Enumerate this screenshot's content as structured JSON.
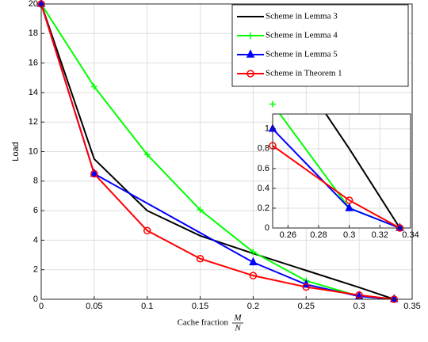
{
  "chart_data": [
    {
      "type": "line",
      "xlabel": "Cache fraction",
      "xlabel_fraction": {
        "numerator": "M",
        "denominator": "N"
      },
      "ylabel": "Load",
      "xlim": [
        0,
        0.35
      ],
      "xticks": [
        0,
        0.05,
        0.1,
        0.15,
        0.2,
        0.25,
        0.3,
        0.35
      ],
      "ylim": [
        0,
        20
      ],
      "yticks": [
        0,
        2,
        4,
        6,
        8,
        10,
        12,
        14,
        16,
        18,
        20
      ],
      "grid": true,
      "legend": "upper right",
      "series": [
        {
          "name": "Scheme in Lemma 3",
          "color": "#000000",
          "marker": "none",
          "x": [
            0,
            0.05,
            0.1,
            0.15,
            0.2,
            0.25,
            0.3,
            0.333
          ],
          "values": [
            20,
            9.5,
            6,
            4.3,
            3.1,
            1.95,
            0.8,
            0
          ]
        },
        {
          "name": "Scheme in Lemma 4",
          "color": "#00ff00",
          "marker": "plus",
          "x": [
            0,
            0.05,
            0.1,
            0.15,
            0.2,
            0.25,
            0.3,
            0.333
          ],
          "values": [
            20,
            14.4,
            9.8,
            6.05,
            3.2,
            1.25,
            0.2,
            0
          ]
        },
        {
          "name": "Scheme in Lemma 5",
          "color": "#0000ff",
          "marker": "triangle",
          "x": [
            0,
            0.05,
            0.2,
            0.25,
            0.3,
            0.333
          ],
          "values": [
            20,
            8.5,
            2.5,
            1,
            0.2,
            0
          ]
        },
        {
          "name": "Scheme in Theorem 1",
          "color": "#ff0000",
          "marker": "circle",
          "x": [
            0,
            0.05,
            0.1,
            0.15,
            0.2,
            0.25,
            0.3,
            0.333
          ],
          "values": [
            20,
            8.5,
            4.65,
            2.75,
            1.6,
            0.83,
            0.28,
            0
          ]
        }
      ]
    },
    {
      "type": "line",
      "xlim": [
        0.25,
        0.34
      ],
      "xticks": [
        0.26,
        0.28,
        0.3,
        0.32,
        0.34
      ],
      "ylim": [
        0,
        1.15
      ],
      "yticks": [
        0,
        0.2,
        0.4,
        0.6,
        0.8,
        1
      ],
      "grid": true,
      "series": [
        {
          "color": "#000000",
          "marker": "none",
          "x": [
            0.25,
            0.3,
            0.333
          ],
          "values": [
            1.95,
            0.8,
            0
          ]
        },
        {
          "color": "#00ff00",
          "marker": "plus",
          "x": [
            0.25,
            0.3,
            0.333
          ],
          "values": [
            1.25,
            0.2,
            0
          ]
        },
        {
          "color": "#0000ff",
          "marker": "triangle",
          "x": [
            0.25,
            0.3,
            0.333
          ],
          "values": [
            1,
            0.2,
            0
          ]
        },
        {
          "color": "#ff0000",
          "marker": "circle",
          "x": [
            0.25,
            0.3,
            0.333
          ],
          "values": [
            0.83,
            0.28,
            0
          ]
        }
      ]
    }
  ]
}
